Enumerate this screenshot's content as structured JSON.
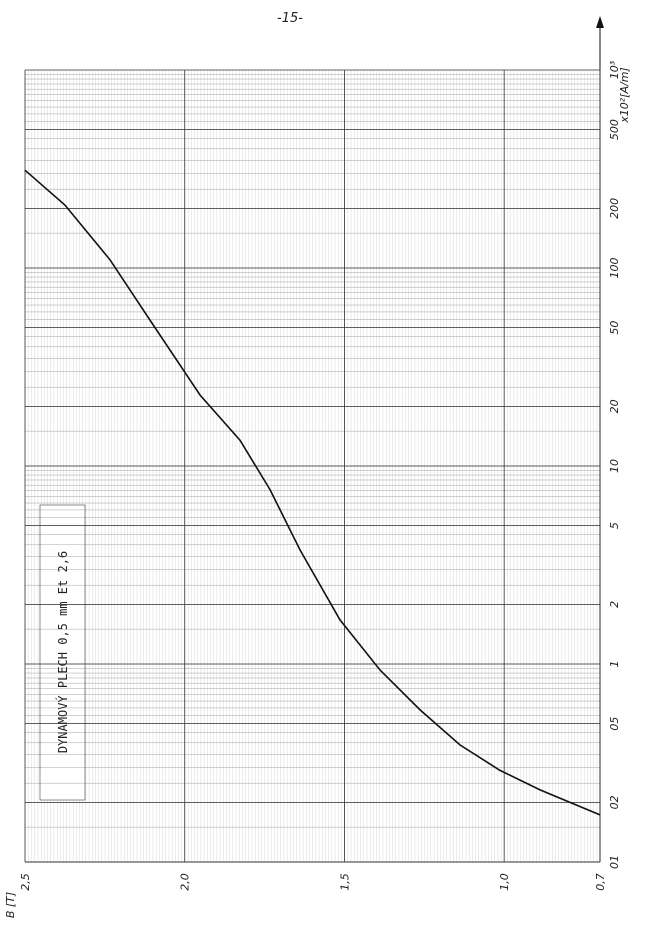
{
  "chart_data": {
    "type": "line",
    "page_number": "-15-",
    "x_label": "B [T]",
    "y_label": "x10²[A/m]",
    "annotation": "DYNAMOVÝ PLECH 0,5 mm Et 2,6",
    "series": [
      {
        "color": "#111111",
        "x": [
          2.5,
          2.375,
          2.234,
          2.109,
          1.952,
          1.827,
          1.733,
          1.639,
          1.514,
          1.388,
          1.263,
          1.138,
          1.013,
          0.887,
          0.7
        ],
        "values": [
          312,
          208,
          110,
          54.6,
          22.8,
          13.5,
          7.6,
          3.77,
          1.67,
          0.93,
          0.586,
          0.39,
          0.29,
          0.231,
          0.173
        ]
      }
    ],
    "xlim": [
      2.5,
      0.7
    ],
    "xticks": [
      {
        "value": 2.5,
        "label": "2,5"
      },
      {
        "value": 2.0,
        "label": "2,0"
      },
      {
        "value": 1.5,
        "label": "1,5"
      },
      {
        "value": 1.0,
        "label": "1,0"
      },
      {
        "value": 0.7,
        "label": "0,7"
      }
    ],
    "ylim": [
      0.1,
      1000
    ],
    "yticks": [
      {
        "value": 1000,
        "label": "10³"
      },
      500,
      200,
      100,
      50,
      20,
      10,
      5,
      2,
      1,
      {
        "value": 0.5,
        "label": "05"
      },
      {
        "value": 0.2,
        "label": "02"
      },
      {
        "value": 0.1,
        "label": "01"
      }
    ],
    "log_y": true,
    "grid": true
  }
}
